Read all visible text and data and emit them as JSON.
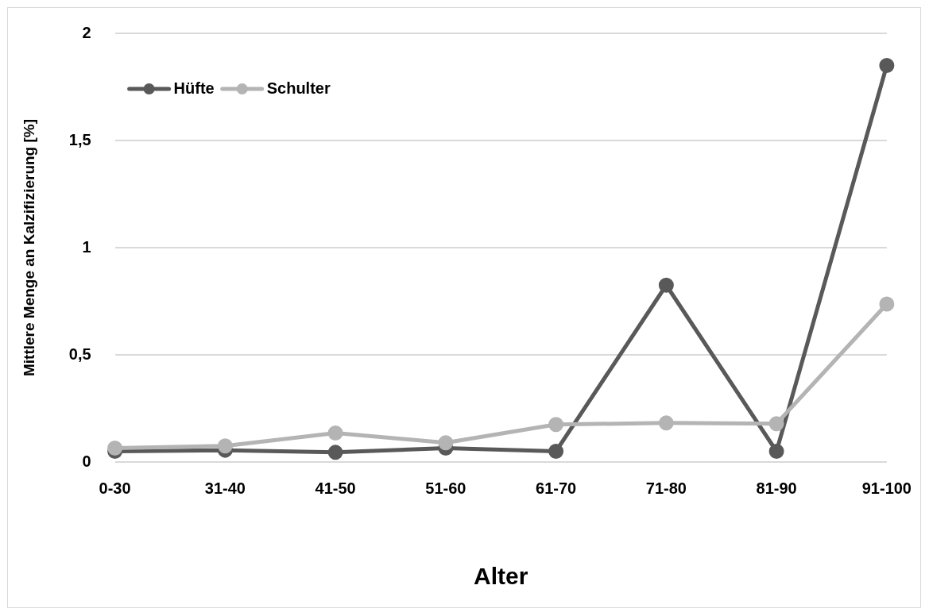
{
  "chart_data": {
    "type": "line",
    "xlabel": "Alter",
    "ylabel": "Mittlere Menge an Kalzifizierung [%]",
    "categories": [
      "0-30",
      "31-40",
      "41-50",
      "51-60",
      "61-70",
      "71-80",
      "81-90",
      "91-100"
    ],
    "series": [
      {
        "name": "Hüfte",
        "color": "#595959",
        "values": [
          0.05,
          0.055,
          0.045,
          0.065,
          0.05,
          0.825,
          0.05,
          1.85
        ]
      },
      {
        "name": "Schulter",
        "color": "#b4b4b4",
        "values": [
          0.065,
          0.075,
          0.135,
          0.09,
          0.175,
          0.182,
          0.179,
          0.737
        ]
      }
    ],
    "ylim": [
      0,
      2
    ],
    "yticks": [
      0,
      {
        "value": 0.5,
        "label": "0,5"
      },
      1,
      {
        "value": 1.5,
        "label": "1,5"
      },
      2
    ],
    "grid": "y",
    "legend": "top left",
    "marker": "circle",
    "line_style": "solid"
  }
}
